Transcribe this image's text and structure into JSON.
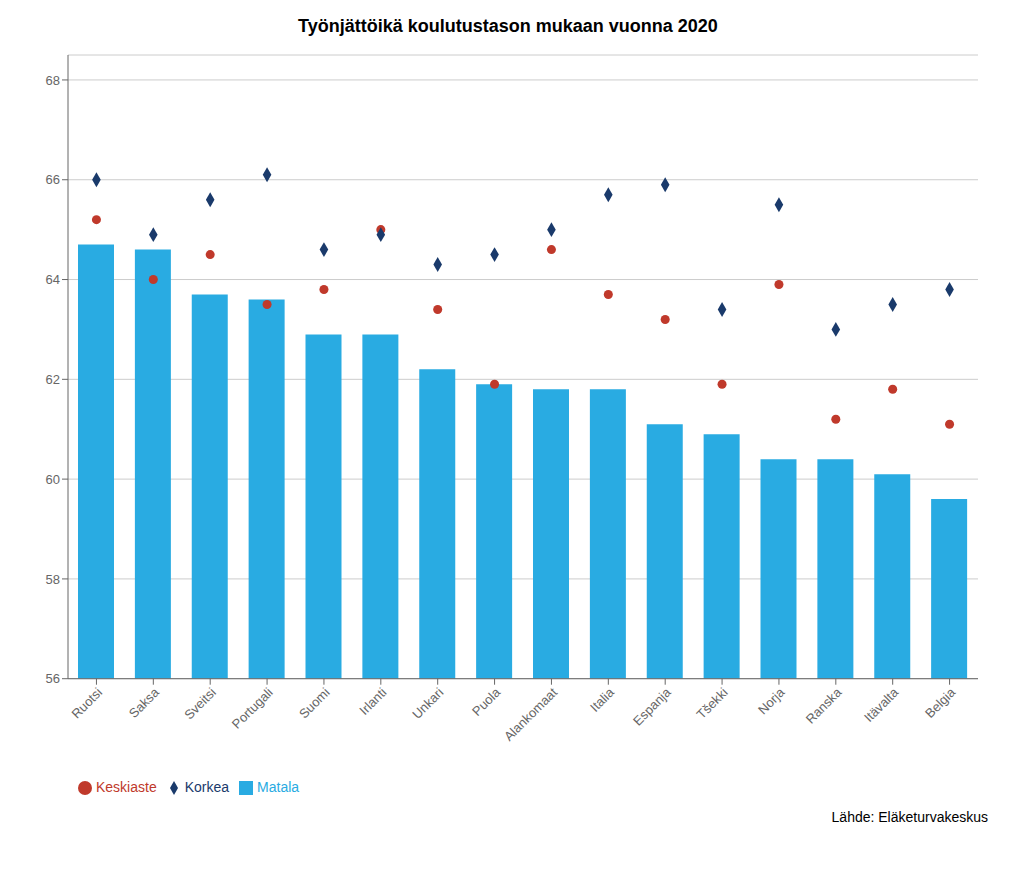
{
  "chart_data": {
    "type": "bar",
    "title": "Työnjättöikä koulutustason mukaan vuonna 2020",
    "categories": [
      "Ruotsi",
      "Saksa",
      "Sveitsi",
      "Portugali",
      "Suomi",
      "Irlanti",
      "Unkari",
      "Puola",
      "Alankomaat",
      "Italia",
      "Espanja",
      "Tšekki",
      "Norja",
      "Ranska",
      "Itävalta",
      "Belgia"
    ],
    "series": [
      {
        "name": "Matala",
        "type": "bar",
        "color": "#29ABE2",
        "values": [
          64.7,
          64.6,
          63.7,
          63.6,
          62.9,
          62.9,
          62.2,
          61.9,
          61.8,
          61.8,
          61.1,
          60.9,
          60.4,
          60.4,
          60.1,
          59.6
        ]
      },
      {
        "name": "Keskiaste",
        "type": "scatter",
        "marker": "circle",
        "color": "#C0392B",
        "values": [
          65.2,
          64.0,
          64.5,
          63.5,
          63.8,
          65.0,
          63.4,
          61.9,
          64.6,
          63.7,
          63.2,
          61.9,
          63.9,
          61.2,
          61.8,
          61.1
        ]
      },
      {
        "name": "Korkea",
        "type": "scatter",
        "marker": "diamond",
        "color": "#1A3A6B",
        "values": [
          66.0,
          64.9,
          65.6,
          66.1,
          64.6,
          64.9,
          64.3,
          64.5,
          65.0,
          65.7,
          65.9,
          63.4,
          65.5,
          63.0,
          63.5,
          63.8
        ]
      }
    ],
    "ylim": [
      56,
      68.5
    ],
    "yticks": [
      56,
      58,
      60,
      62,
      64,
      66,
      68
    ],
    "grid": true,
    "legend": "lower left",
    "annotations": [
      "Lähde: Eläketurvakeskus"
    ]
  }
}
